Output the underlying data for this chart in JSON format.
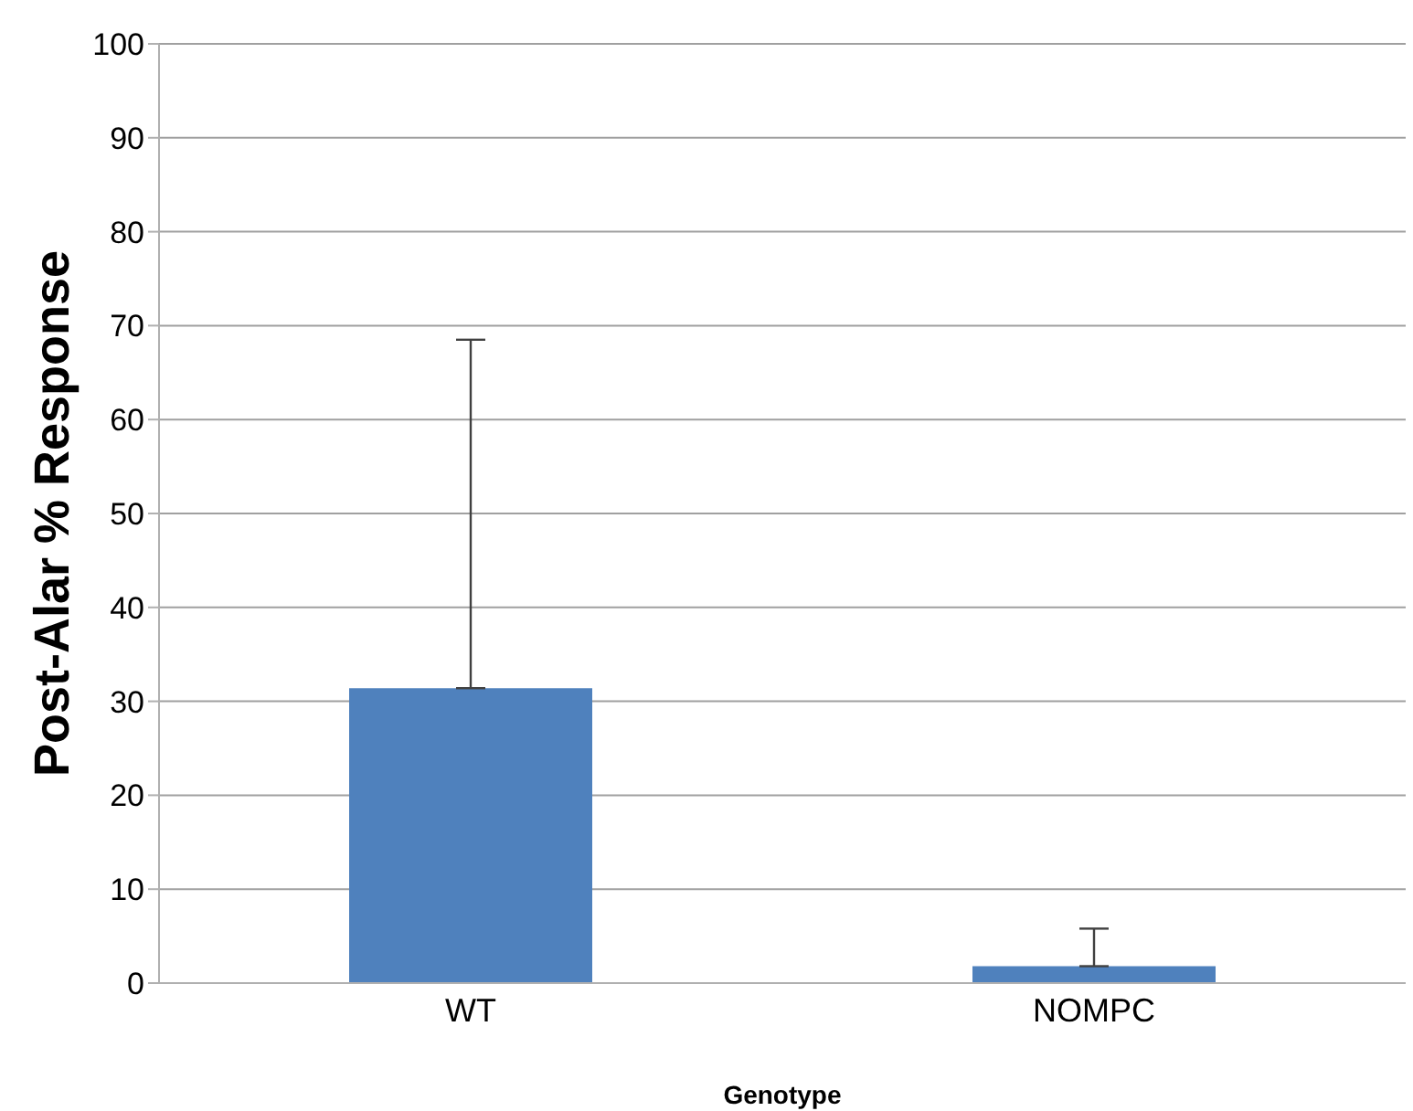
{
  "chart_data": {
    "type": "bar",
    "xlabel": "Genotype",
    "ylabel": "Post-Alar % Response",
    "categories": [
      "WT",
      "NOMPC"
    ],
    "values": [
      31.4,
      1.8
    ],
    "errors": [
      [
        31.4,
        68.5
      ],
      [
        1.8,
        5.8
      ]
    ],
    "color": "#4f81bd",
    "ylim": [
      0,
      100
    ],
    "yticks": [
      0,
      10,
      20,
      30,
      40,
      50,
      60,
      70,
      80,
      90,
      100
    ],
    "grid": "y"
  }
}
